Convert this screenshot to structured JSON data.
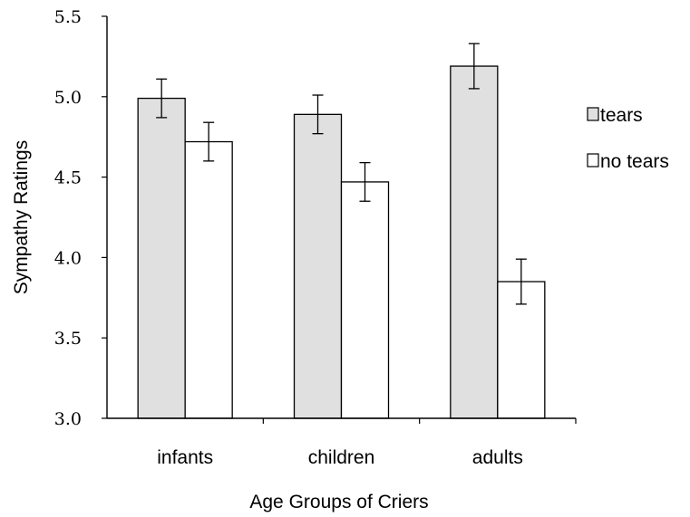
{
  "chart_data": {
    "type": "bar",
    "title": "",
    "xlabel": "Age Groups of Criers",
    "ylabel": "Sympathy Ratings",
    "ylim": [
      3.0,
      5.5
    ],
    "yticks": [
      "3.0",
      "3.5",
      "4.0",
      "4.5",
      "5.0",
      "5.5"
    ],
    "grid": false,
    "legend_position": "right",
    "categories": [
      "infants",
      "children",
      "adults"
    ],
    "series": [
      {
        "name": "tears",
        "values": [
          4.99,
          4.89,
          5.19
        ],
        "errors": [
          0.12,
          0.12,
          0.14
        ],
        "color": "#e0e0e0"
      },
      {
        "name": "no tears",
        "values": [
          4.72,
          4.47,
          3.85
        ],
        "errors": [
          0.12,
          0.12,
          0.14
        ],
        "color": "#ffffff"
      }
    ]
  }
}
